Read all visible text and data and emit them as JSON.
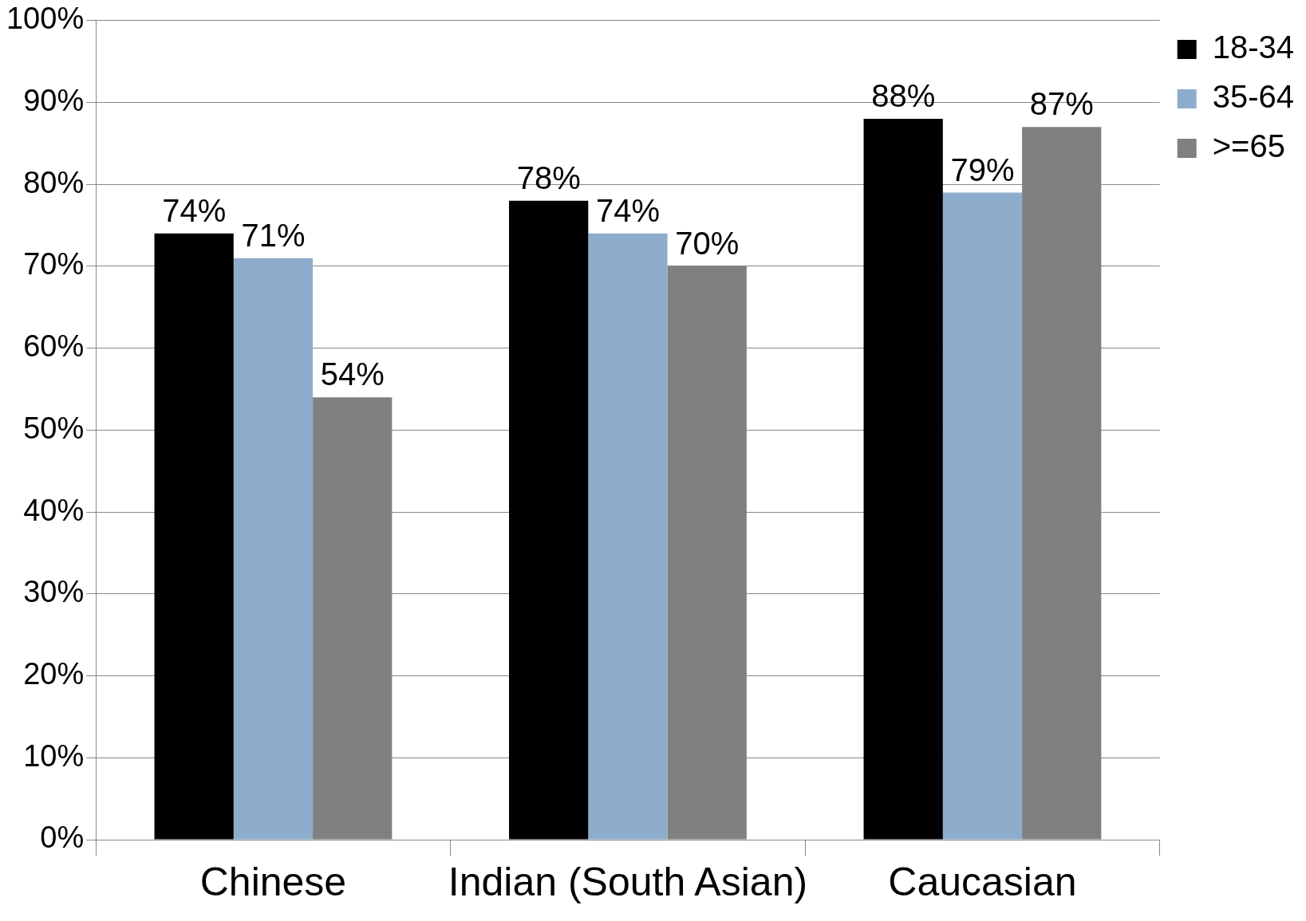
{
  "chart_data": {
    "type": "bar",
    "categories": [
      "Chinese",
      "Indian (South Asian)",
      "Caucasian"
    ],
    "series": [
      {
        "name": "18-34",
        "color": "#000000",
        "values": [
          74,
          78,
          88
        ],
        "value_labels": [
          "74%",
          "78%",
          "88%"
        ]
      },
      {
        "name": "35-64",
        "color": "#8eaccc",
        "values": [
          71,
          74,
          79
        ],
        "value_labels": [
          "71%",
          "74%",
          "79%"
        ]
      },
      {
        "name": ">=65",
        "color": "#808080",
        "values": [
          54,
          70,
          87
        ],
        "value_labels": [
          "54%",
          "70%",
          "87%"
        ]
      }
    ],
    "ylim": [
      0,
      100
    ],
    "yticks": [
      {
        "value": 0,
        "label": "0%"
      },
      {
        "value": 10,
        "label": "10%"
      },
      {
        "value": 20,
        "label": "20%"
      },
      {
        "value": 30,
        "label": "30%"
      },
      {
        "value": 40,
        "label": "40%"
      },
      {
        "value": 50,
        "label": "50%"
      },
      {
        "value": 60,
        "label": "60%"
      },
      {
        "value": 70,
        "label": "70%"
      },
      {
        "value": 80,
        "label": "80%"
      },
      {
        "value": 90,
        "label": "90%"
      },
      {
        "value": 100,
        "label": "100%"
      }
    ],
    "grid": "y",
    "legend": "top right"
  }
}
